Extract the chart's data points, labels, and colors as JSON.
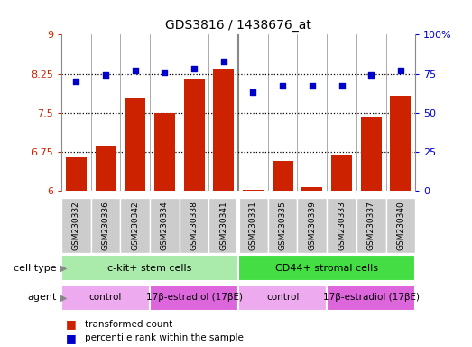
{
  "title": "GDS3816 / 1438676_at",
  "samples": [
    "GSM230332",
    "GSM230336",
    "GSM230342",
    "GSM230334",
    "GSM230338",
    "GSM230341",
    "GSM230331",
    "GSM230335",
    "GSM230339",
    "GSM230333",
    "GSM230337",
    "GSM230340"
  ],
  "bar_values": [
    6.65,
    6.85,
    7.8,
    7.5,
    8.15,
    8.35,
    6.02,
    6.58,
    6.08,
    6.68,
    7.42,
    7.82
  ],
  "scatter_values": [
    70,
    74,
    77,
    76,
    78,
    83,
    63,
    67,
    67,
    67,
    74,
    77
  ],
  "ylim_left": [
    6,
    9
  ],
  "ylim_right": [
    0,
    100
  ],
  "yticks_left": [
    6,
    6.75,
    7.5,
    8.25,
    9
  ],
  "ytick_labels_left": [
    "6",
    "6.75",
    "7.5",
    "8.25",
    "9"
  ],
  "yticks_right": [
    0,
    25,
    50,
    75,
    100
  ],
  "ytick_labels_right": [
    "0",
    "25",
    "50",
    "75",
    "100%"
  ],
  "bar_color": "#cc2200",
  "scatter_color": "#0000cc",
  "bar_width": 0.7,
  "group_separator": 5.5,
  "cell_type_groups": [
    {
      "label": "c-kit+ stem cells",
      "start": 0,
      "end": 5,
      "color": "#aaeaaa"
    },
    {
      "label": "CD44+ stromal cells",
      "start": 6,
      "end": 11,
      "color": "#44dd44"
    }
  ],
  "agent_groups": [
    {
      "label": "control",
      "start": 0,
      "end": 2,
      "color": "#eeaaee"
    },
    {
      "label": "17β-estradiol (17βE)",
      "start": 3,
      "end": 5,
      "color": "#dd66dd"
    },
    {
      "label": "control",
      "start": 6,
      "end": 8,
      "color": "#eeaaee"
    },
    {
      "label": "17β-estradiol (17βE)",
      "start": 9,
      "end": 11,
      "color": "#dd66dd"
    }
  ],
  "legend_items": [
    {
      "label": "transformed count",
      "color": "#cc2200"
    },
    {
      "label": "percentile rank within the sample",
      "color": "#0000cc"
    }
  ],
  "row_labels": [
    "cell type",
    "agent"
  ],
  "tick_color_left": "#cc2200",
  "tick_color_right": "#0000cc",
  "dotted_yticks": [
    6.75,
    7.5,
    8.25
  ],
  "xtick_bg_color": "#cccccc",
  "spine_color": "#888888"
}
